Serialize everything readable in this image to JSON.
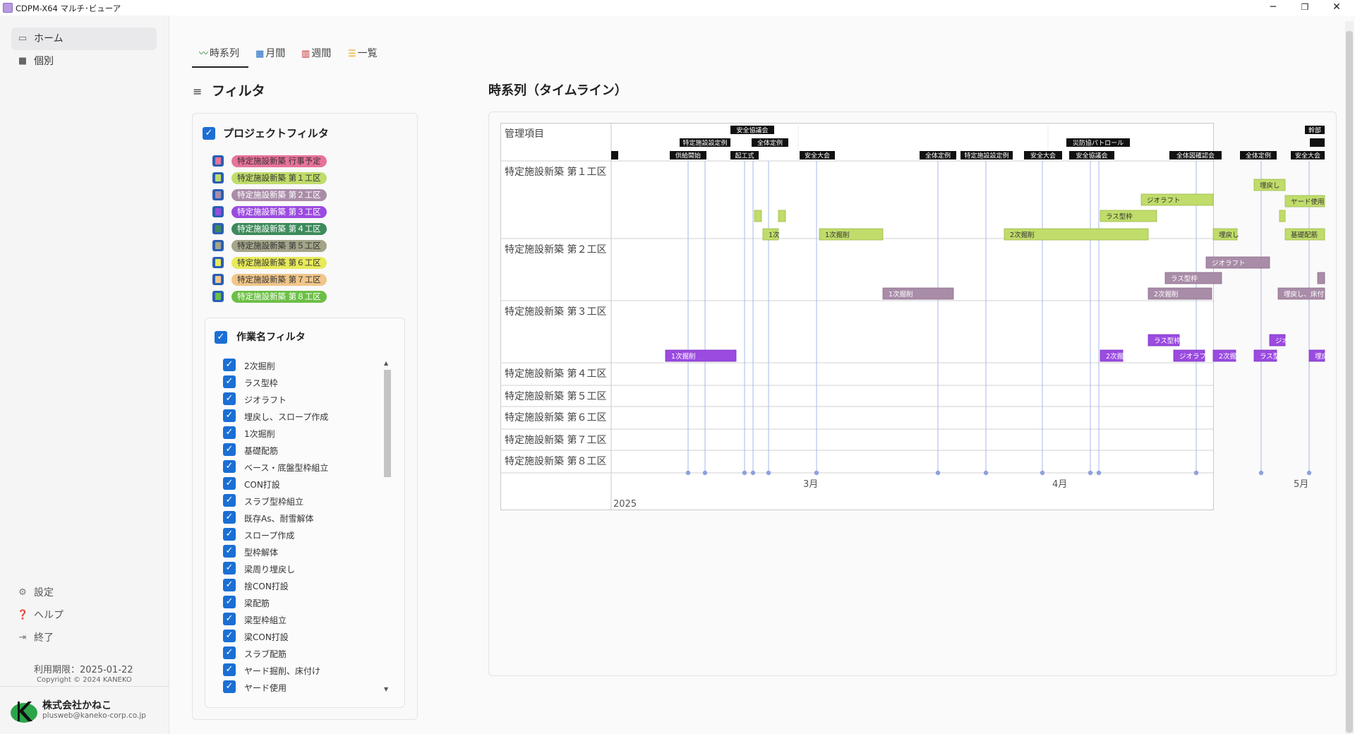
{
  "window": {
    "title": "CDPM-X64 マルチ･ビューア",
    "minimize": "─",
    "maximize": "❐",
    "close": "✕"
  },
  "sidebar": {
    "nav": [
      {
        "label": "ホーム",
        "icon": "home-icon"
      },
      {
        "label": "個別",
        "icon": "folder-icon"
      }
    ],
    "footer": [
      {
        "label": "設定",
        "icon": "gear-icon"
      },
      {
        "label": "ヘルプ",
        "icon": "help-icon"
      },
      {
        "label": "終了",
        "icon": "exit-icon"
      }
    ],
    "expiry": "利用期限：2025-01-22",
    "copyright": "Copyright © 2024 KANEKO",
    "company": "株式会社かねこ",
    "email": "plusweb@kaneko-corp.co.jp"
  },
  "tabs": [
    {
      "label": "時系列",
      "icon": "trend-icon",
      "color": "#2e7d32"
    },
    {
      "label": "月間",
      "icon": "calendar-icon",
      "color": "#1565c0"
    },
    {
      "label": "週間",
      "icon": "grid-icon",
      "color": "#c62828"
    },
    {
      "label": "一覧",
      "icon": "list-icon",
      "color": "#f9a825"
    }
  ],
  "filter": {
    "heading": "フィルタ",
    "project_title": "プロジェクトフィルタ",
    "projects": [
      {
        "label": "特定施設新築 行事予定",
        "color": "#e8739a",
        "text": "#333"
      },
      {
        "label": "特定施設新築 第１工区",
        "color": "#c0dc6a",
        "text": "#333"
      },
      {
        "label": "特定施設新築 第２工区",
        "color": "#a98ca8",
        "text": "#fff"
      },
      {
        "label": "特定施設新築 第３工区",
        "color": "#9b4be0",
        "text": "#fff"
      },
      {
        "label": "特定施設新築 第４工区",
        "color": "#3d8a5a",
        "text": "#fff"
      },
      {
        "label": "特定施設新築 第５工区",
        "color": "#a3a489",
        "text": "#333"
      },
      {
        "label": "特定施設新築 第６工区",
        "color": "#e8ea5a",
        "text": "#333"
      },
      {
        "label": "特定施設新築 第７工区",
        "color": "#f0c68a",
        "text": "#333"
      },
      {
        "label": "特定施設新築 第８工区",
        "color": "#6cbf45",
        "text": "#fff"
      }
    ],
    "task_title": "作業名フィルタ",
    "tasks": [
      "2次掘削",
      "ラス型枠",
      "ジオラフト",
      "埋戻し、スロープ作成",
      "1次掘削",
      "基礎配筋",
      "ベース・底盤型枠組立",
      "CON打設",
      "スラブ型枠組立",
      "既存As、耐雪解体",
      "スロープ作成",
      "型枠解体",
      "梁周り埋戻し",
      "捨CON打設",
      "梁配筋",
      "梁型枠組立",
      "梁CON打設",
      "スラブ配筋",
      "ヤード掘削、床付け",
      "ヤード使用"
    ]
  },
  "timeline": {
    "heading": "時系列（タイムライン）",
    "header_label": "管理項目",
    "rows": [
      "特定施設新築 第１工区",
      "特定施設新築 第２工区",
      "特定施設新築 第３工区",
      "特定施設新築 第４工区",
      "特定施設新築 第５工区",
      "特定施設新築 第６工区",
      "特定施設新築 第７工区",
      "特定施設新築 第８工区"
    ],
    "months": [
      "3月",
      "4月",
      "5月"
    ],
    "year": "2025",
    "events_row1": [
      "安全協議会",
      "幹部"
    ],
    "events_row2": [
      "特定施設設定例",
      "全体定例",
      "災防協パトロール"
    ],
    "events_row3": [
      "供給開始",
      "起工式",
      "安全大会",
      "全体定例",
      "特定施設設定例",
      "安全大会",
      "安全協議会",
      "全体図確認会",
      "全体定例",
      "安全大会"
    ],
    "bars_zone1": [
      "1次",
      "1次掘削",
      "2次掘削",
      "ラス型枠",
      "ジオラフト",
      "埋戻し",
      "埋戻し",
      "ヤード使用",
      "基礎配筋"
    ],
    "bars_zone2": [
      "1次掘削",
      "2次掘削",
      "ラス型枠",
      "ジオラフト",
      "埋戻し、床付"
    ],
    "bars_zone3": [
      "1次掘削",
      "2次掘",
      "ラス型枠",
      "ジオラフ",
      "2次掘",
      "ラス型",
      "ジオ",
      "埋戻"
    ]
  }
}
